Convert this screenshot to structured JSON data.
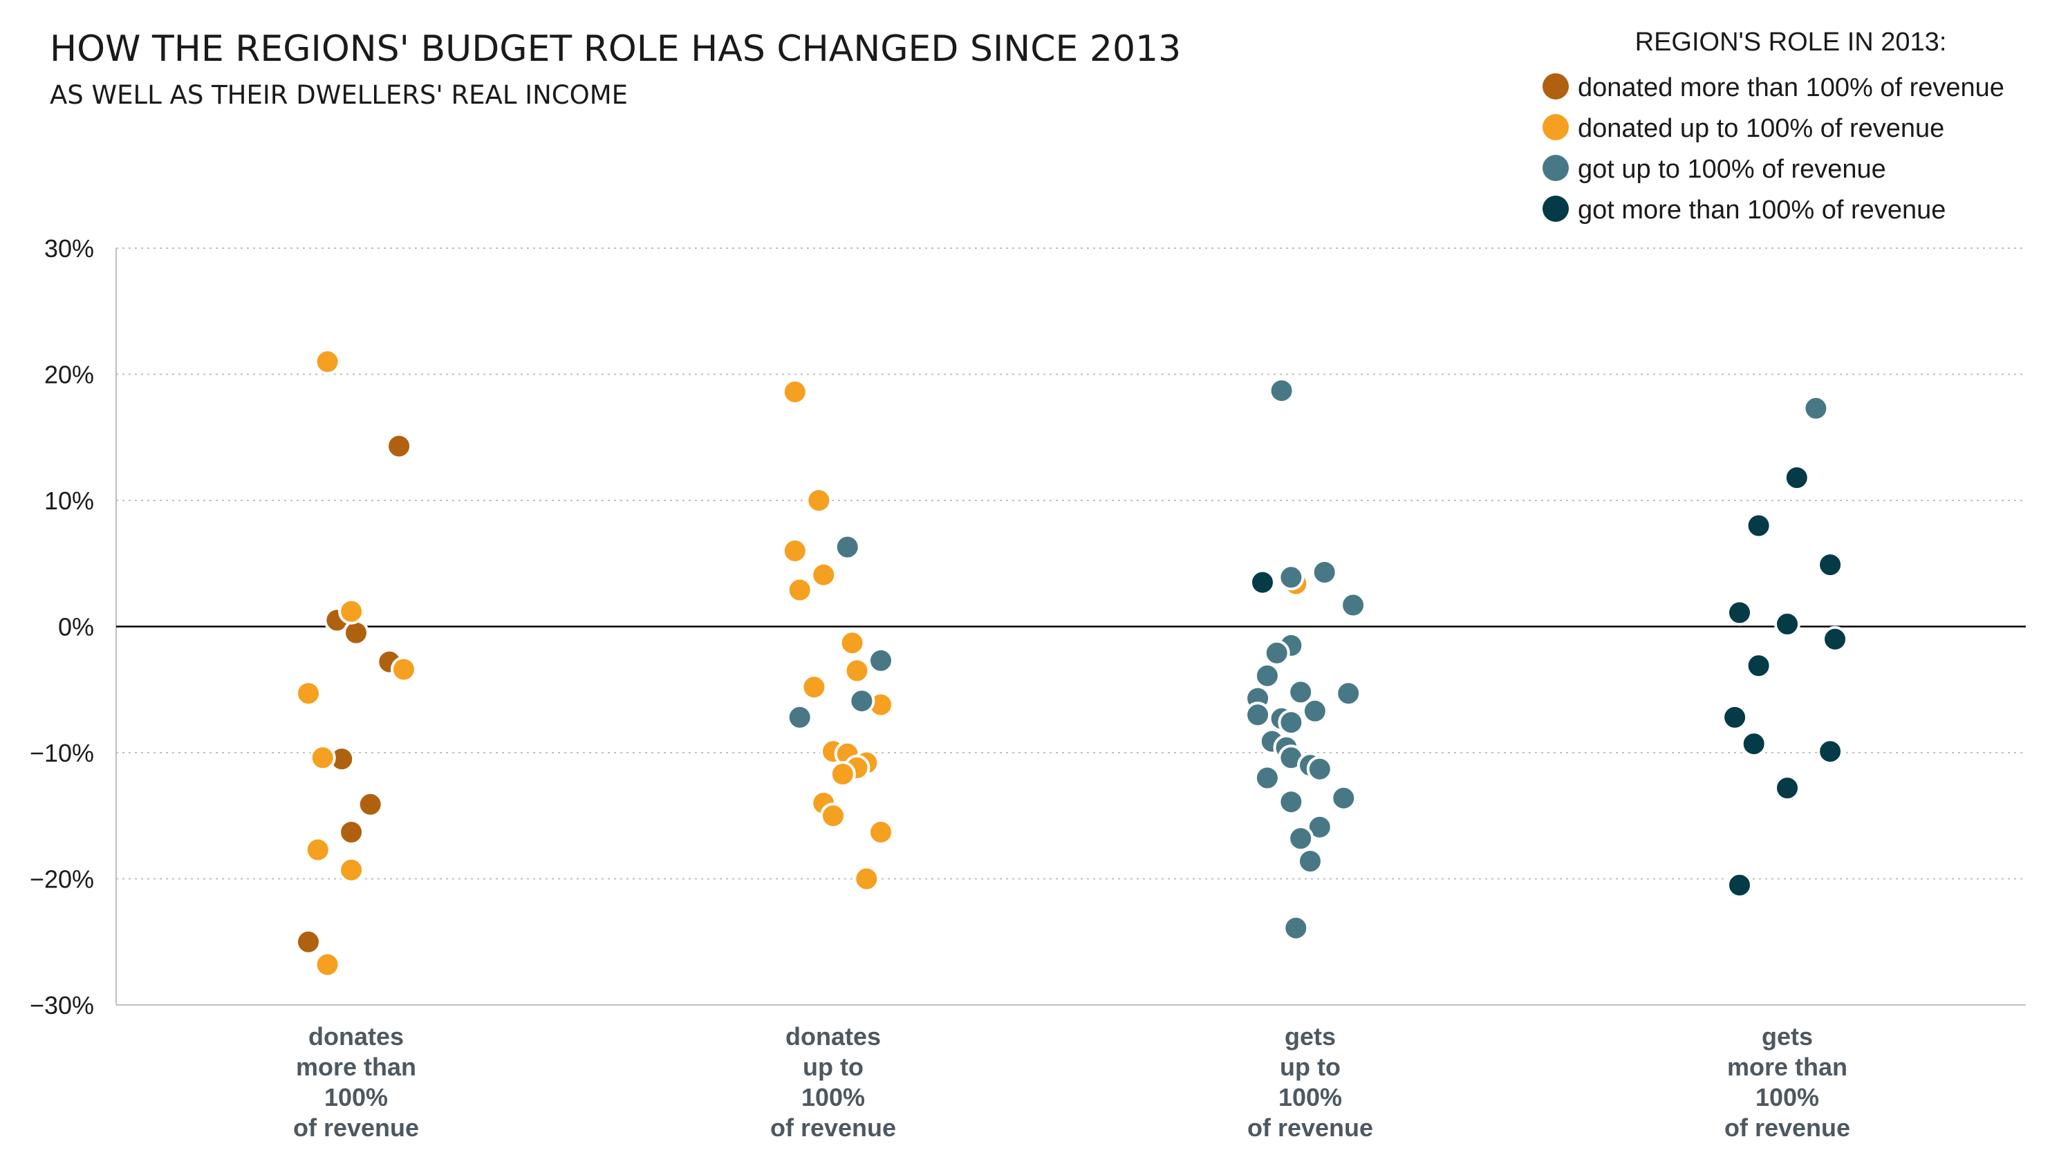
{
  "colors": {
    "donated_more": "#b0610f",
    "donated_up": "#f5a020",
    "got_up": "#487885",
    "got_more": "#053a47"
  },
  "chart_data": {
    "type": "scatter",
    "title": "HOW THE REGIONS' BUDGET ROLE HAS CHANGED SINCE 2013",
    "subtitle": "AS WELL AS THEIR DWELLERS' REAL INCOME",
    "legend_title": "REGION'S ROLE IN 2013:",
    "legend_placement": "top-right",
    "grid": true,
    "ylim": [
      -30,
      30
    ],
    "yticks": [
      30,
      20,
      10,
      0,
      -10,
      -20,
      -30
    ],
    "ytick_labels": [
      "30%",
      "20%",
      "10%",
      "0%",
      "−10%",
      "−20%",
      "−30%"
    ],
    "categories": [
      [
        "donates",
        "more than",
        "100%",
        "of revenue"
      ],
      [
        "donates",
        "up to",
        "100%",
        "of revenue"
      ],
      [
        "gets",
        "up to",
        "100%",
        "of revenue"
      ],
      [
        "gets",
        "more than",
        "100%",
        "of revenue"
      ]
    ],
    "series": [
      {
        "name": "donated more than 100% of revenue",
        "color_key": "donated_more",
        "points": [
          {
            "x": 0.09,
            "y": 14.3
          },
          {
            "x": -0.04,
            "y": 0.5
          },
          {
            "x": 0.0,
            "y": -0.5
          },
          {
            "x": 0.07,
            "y": -2.8
          },
          {
            "x": -0.03,
            "y": -10.5
          },
          {
            "x": 0.03,
            "y": -14.1
          },
          {
            "x": -0.01,
            "y": -16.3
          },
          {
            "x": -0.1,
            "y": -25.0
          }
        ]
      },
      {
        "name": "donated up to 100% of revenue",
        "color_key": "donated_up",
        "points": [
          {
            "x": -0.06,
            "y": 21.0
          },
          {
            "x": -0.01,
            "y": 1.2
          },
          {
            "x": 0.1,
            "y": -3.4
          },
          {
            "x": -0.1,
            "y": -5.3
          },
          {
            "x": -0.07,
            "y": -10.4
          },
          {
            "x": -0.08,
            "y": -17.7
          },
          {
            "x": -0.01,
            "y": -19.3
          },
          {
            "x": -0.06,
            "y": -26.8
          },
          {
            "x": 0.92,
            "y": 18.6
          },
          {
            "x": 0.97,
            "y": 10.0
          },
          {
            "x": 0.92,
            "y": 6.0
          },
          {
            "x": 0.98,
            "y": 4.1
          },
          {
            "x": 0.93,
            "y": 2.9
          },
          {
            "x": 1.04,
            "y": -1.3
          },
          {
            "x": 1.05,
            "y": -3.5
          },
          {
            "x": 0.96,
            "y": -4.8
          },
          {
            "x": 1.1,
            "y": -6.2
          },
          {
            "x": 1.0,
            "y": -9.9
          },
          {
            "x": 1.03,
            "y": -10.1
          },
          {
            "x": 1.07,
            "y": -10.8
          },
          {
            "x": 1.05,
            "y": -11.2
          },
          {
            "x": 1.02,
            "y": -11.7
          },
          {
            "x": 0.98,
            "y": -14.0
          },
          {
            "x": 1.0,
            "y": -15.0
          },
          {
            "x": 1.1,
            "y": -16.3
          },
          {
            "x": 1.07,
            "y": -20.0
          },
          {
            "x": 1.97,
            "y": 3.4
          }
        ]
      },
      {
        "name": "got up to 100% of revenue",
        "color_key": "got_up",
        "points": [
          {
            "x": 1.03,
            "y": 6.3
          },
          {
            "x": 1.1,
            "y": -2.7
          },
          {
            "x": 1.06,
            "y": -5.9
          },
          {
            "x": 0.93,
            "y": -7.2
          },
          {
            "x": 1.94,
            "y": 18.7
          },
          {
            "x": 2.03,
            "y": 4.3
          },
          {
            "x": 1.96,
            "y": 3.9
          },
          {
            "x": 2.09,
            "y": 1.7
          },
          {
            "x": 1.96,
            "y": -1.5
          },
          {
            "x": 1.93,
            "y": -2.1
          },
          {
            "x": 1.91,
            "y": -3.9
          },
          {
            "x": 1.98,
            "y": -5.2
          },
          {
            "x": 2.08,
            "y": -5.3
          },
          {
            "x": 1.89,
            "y": -5.7
          },
          {
            "x": 2.01,
            "y": -6.7
          },
          {
            "x": 1.89,
            "y": -7.0
          },
          {
            "x": 1.94,
            "y": -7.3
          },
          {
            "x": 1.96,
            "y": -7.6
          },
          {
            "x": 1.92,
            "y": -9.1
          },
          {
            "x": 1.95,
            "y": -9.6
          },
          {
            "x": 1.96,
            "y": -10.4
          },
          {
            "x": 2.0,
            "y": -11.0
          },
          {
            "x": 2.02,
            "y": -11.3
          },
          {
            "x": 1.91,
            "y": -12.0
          },
          {
            "x": 1.96,
            "y": -13.9
          },
          {
            "x": 2.07,
            "y": -13.6
          },
          {
            "x": 2.02,
            "y": -15.9
          },
          {
            "x": 1.98,
            "y": -16.8
          },
          {
            "x": 2.0,
            "y": -18.6
          },
          {
            "x": 1.97,
            "y": -23.9
          },
          {
            "x": 3.06,
            "y": 17.3
          }
        ]
      },
      {
        "name": "got more than 100% of revenue",
        "color_key": "got_more",
        "points": [
          {
            "x": 1.9,
            "y": 3.5
          },
          {
            "x": 3.02,
            "y": 11.8
          },
          {
            "x": 2.94,
            "y": 8.0
          },
          {
            "x": 3.09,
            "y": 4.9
          },
          {
            "x": 2.9,
            "y": 1.1
          },
          {
            "x": 3.0,
            "y": 0.2
          },
          {
            "x": 3.1,
            "y": -1.0
          },
          {
            "x": 2.94,
            "y": -3.1
          },
          {
            "x": 2.89,
            "y": -7.2
          },
          {
            "x": 2.93,
            "y": -9.3
          },
          {
            "x": 3.09,
            "y": -9.9
          },
          {
            "x": 3.0,
            "y": -12.8
          },
          {
            "x": 2.9,
            "y": -20.5
          }
        ]
      }
    ]
  }
}
